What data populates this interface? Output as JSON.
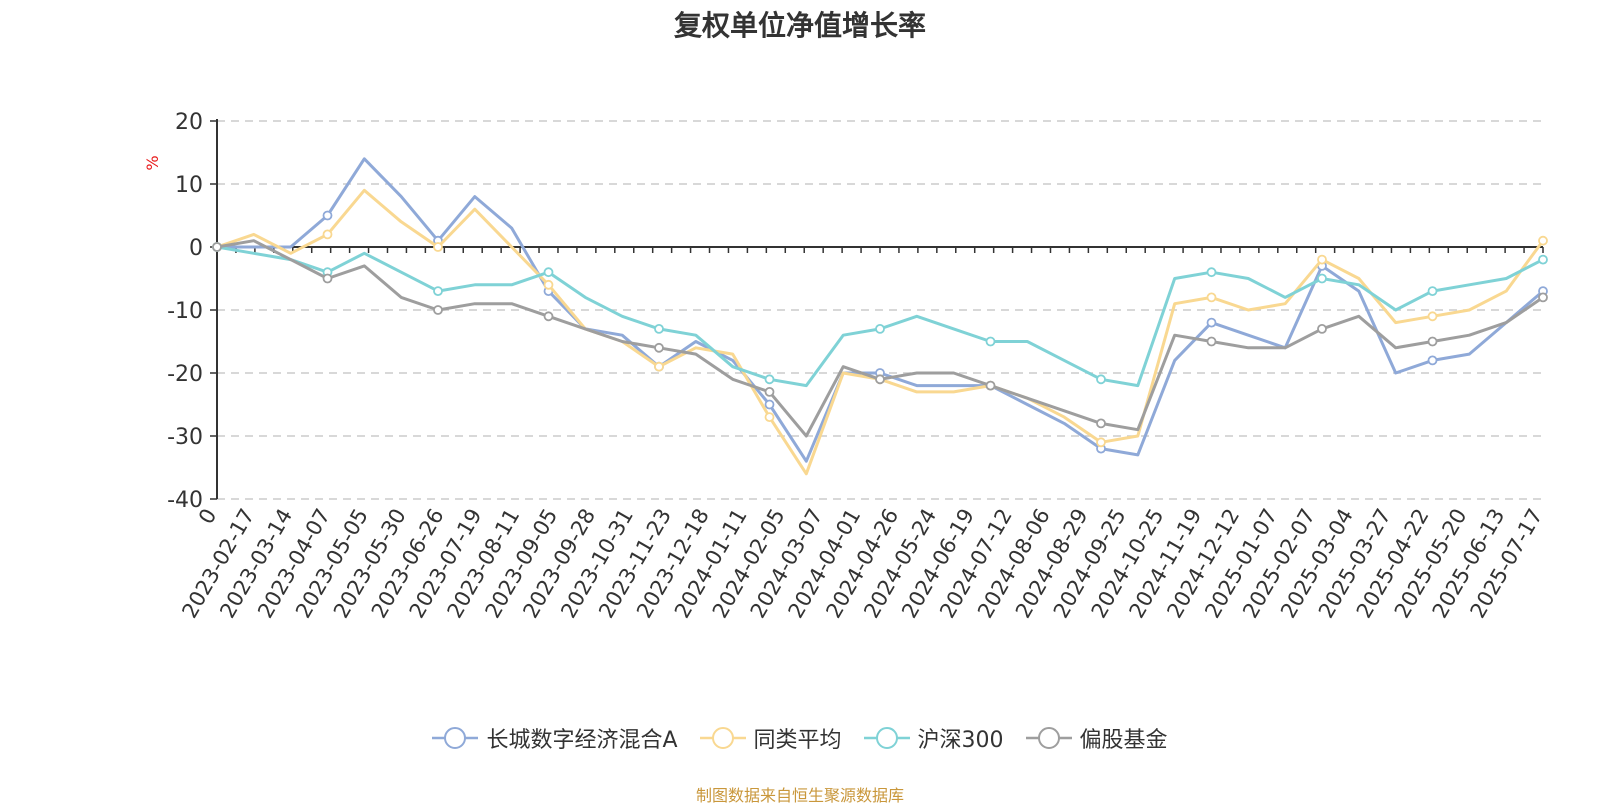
{
  "chart_data": {
    "type": "line",
    "title": "复权单位净值增长率",
    "ylabel": "%",
    "ylim": [
      -40,
      20
    ],
    "yticks": [
      20,
      10,
      0,
      -10,
      -20,
      -30,
      -40
    ],
    "grid": true,
    "legend_position": "bottom-center",
    "x_tick_labels": [
      "0",
      "2023-02-17",
      "2023-03-14",
      "2023-04-07",
      "2023-05-05",
      "2023-05-30",
      "2023-06-26",
      "2023-07-19",
      "2023-08-11",
      "2023-09-05",
      "2023-09-28",
      "2023-10-31",
      "2023-11-23",
      "2023-12-18",
      "2024-01-11",
      "2024-02-05",
      "2024-03-07",
      "2024-04-01",
      "2024-04-26",
      "2024-05-24",
      "2024-06-19",
      "2024-07-12",
      "2024-08-06",
      "2024-08-29",
      "2024-09-25",
      "2024-10-25",
      "2024-11-19",
      "2024-12-12",
      "2025-01-07",
      "2025-02-07",
      "2025-03-04",
      "2025-03-27",
      "2025-04-22",
      "2025-05-20",
      "2025-06-13",
      "2025-07-17"
    ],
    "series": [
      {
        "name": "长城数字经济混合A",
        "color": "#8fa9d8",
        "values": [
          0,
          0,
          0,
          5,
          14,
          8,
          1,
          8,
          3,
          -7,
          -13,
          -14,
          -19,
          -15,
          -18,
          -25,
          -34,
          -20,
          -20,
          -22,
          -22,
          -22,
          -25,
          -28,
          -32,
          -33,
          -18,
          -12,
          -14,
          -16,
          -3,
          -7,
          -20,
          -18,
          -17,
          -12,
          -7
        ]
      },
      {
        "name": "同类平均",
        "color": "#f9d891",
        "values": [
          0,
          2,
          -1,
          2,
          9,
          4,
          0,
          6,
          0,
          -6,
          -13,
          -15,
          -19,
          -16,
          -17,
          -27,
          -36,
          -20,
          -21,
          -23,
          -23,
          -22,
          -24,
          -27,
          -31,
          -30,
          -9,
          -8,
          -10,
          -9,
          -2,
          -5,
          -12,
          -11,
          -10,
          -7,
          1
        ]
      },
      {
        "name": "沪深300",
        "color": "#7fd2d6",
        "values": [
          0,
          -1,
          -2,
          -4,
          -1,
          -4,
          -7,
          -6,
          -6,
          -4,
          -8,
          -11,
          -13,
          -14,
          -19,
          -21,
          -22,
          -14,
          -13,
          -11,
          -13,
          -15,
          -15,
          -18,
          -21,
          -22,
          -5,
          -4,
          -5,
          -8,
          -5,
          -6,
          -10,
          -7,
          -6,
          -5,
          -2
        ]
      },
      {
        "name": "偏股基金",
        "color": "#9e9e9e",
        "values": [
          0,
          1,
          -2,
          -5,
          -3,
          -8,
          -10,
          -9,
          -9,
          -11,
          -13,
          -15,
          -16,
          -17,
          -21,
          -23,
          -30,
          -19,
          -21,
          -20,
          -20,
          -22,
          -24,
          -26,
          -28,
          -29,
          -14,
          -15,
          -16,
          -16,
          -13,
          -11,
          -16,
          -15,
          -14,
          -12,
          -8
        ]
      }
    ]
  },
  "source_note": "制图数据来自恒生聚源数据库"
}
